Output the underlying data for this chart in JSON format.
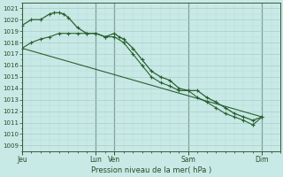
{
  "title": "Pression niveau de la mer( hPa )",
  "bg_color": "#c8eae6",
  "grid_major_color": "#a8ccc8",
  "grid_minor_color": "#b8d8d4",
  "line_color": "#2a6030",
  "vline_color": "#2a3a2a",
  "text_color": "#2a4a2a",
  "ylim": [
    1008.5,
    1021.5
  ],
  "yticks": [
    1009,
    1010,
    1011,
    1012,
    1013,
    1014,
    1015,
    1016,
    1017,
    1018,
    1019,
    1020,
    1021
  ],
  "xlim": [
    0,
    28
  ],
  "xtick_labels": [
    "Jeu",
    "Lun",
    "Ven",
    "Sam",
    "Dim"
  ],
  "xtick_positions": [
    0,
    8,
    10,
    18,
    26
  ],
  "vline_positions": [
    0,
    8,
    10,
    18,
    26
  ],
  "line1_x": [
    0,
    1,
    2,
    3,
    3.5,
    4,
    4.5,
    5,
    6,
    7,
    8,
    9,
    10,
    10.5,
    11,
    12,
    13,
    14,
    15,
    16,
    17,
    18,
    19,
    20,
    21,
    22,
    23,
    24,
    25,
    26
  ],
  "line1_y": [
    1019.5,
    1020.0,
    1020.0,
    1020.5,
    1020.6,
    1020.6,
    1020.5,
    1020.2,
    1019.3,
    1018.8,
    1018.8,
    1018.5,
    1018.8,
    1018.5,
    1018.3,
    1017.5,
    1016.5,
    1015.5,
    1015.0,
    1014.7,
    1014.0,
    1013.8,
    1013.8,
    1013.2,
    1012.8,
    1012.3,
    1011.8,
    1011.5,
    1011.2,
    1011.5
  ],
  "line2_x": [
    0,
    1,
    2,
    3,
    4,
    5,
    6,
    7,
    8,
    9,
    10,
    11,
    12,
    13,
    14,
    15,
    16,
    17,
    18,
    19,
    20,
    21,
    22,
    23,
    24,
    25,
    26
  ],
  "line2_y": [
    1017.5,
    1018.0,
    1018.3,
    1018.5,
    1018.8,
    1018.8,
    1018.8,
    1018.8,
    1018.8,
    1018.5,
    1018.5,
    1018.0,
    1017.0,
    1016.0,
    1015.0,
    1014.5,
    1014.2,
    1013.8,
    1013.8,
    1013.2,
    1012.8,
    1012.3,
    1011.8,
    1011.5,
    1011.2,
    1010.8,
    1011.5
  ],
  "line3_x": [
    0,
    26
  ],
  "line3_y": [
    1017.5,
    1011.5
  ],
  "line1_markers": [
    0,
    1,
    2,
    3,
    3.5,
    4,
    4.5,
    5,
    6,
    7,
    8,
    9,
    10,
    10.5,
    11,
    12,
    13,
    14,
    15,
    16,
    17,
    18,
    19,
    20,
    21,
    22,
    23,
    24,
    25,
    26
  ]
}
